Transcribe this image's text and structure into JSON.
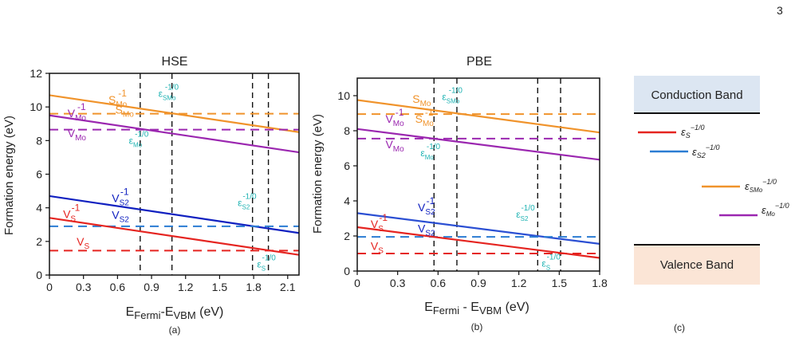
{
  "page_number": "3",
  "chart_data": [
    {
      "type": "line",
      "panel": "(a)",
      "title": "HSE",
      "xlabel": {
        "main": "E",
        "sub1": "Fermi",
        "mid": "-E",
        "sub2": "VBM",
        "unit": " (eV)"
      },
      "ylabel": "Formation energy (eV)",
      "xlim": [
        0,
        2.2
      ],
      "ylim": [
        0,
        12
      ],
      "xticks": [
        0,
        0.3,
        0.6,
        0.9,
        1.2,
        1.5,
        1.8,
        2.1
      ],
      "xtick_labels": [
        "0",
        "0.3",
        "0.6",
        "0.9",
        "1.2",
        "1.5",
        "1.8",
        "2.1"
      ],
      "yticks": [
        0,
        2,
        4,
        6,
        8,
        10,
        12
      ],
      "ytick_labels": [
        "0",
        "2",
        "4",
        "6",
        "8",
        "10",
        "12"
      ],
      "series": [
        {
          "role": "S_Mo charged",
          "color": "#f0932b",
          "dash": false,
          "x": [
            0,
            2.2
          ],
          "y": [
            10.7,
            8.5
          ]
        },
        {
          "role": "S_Mo neutral",
          "color": "#f0932b",
          "dash": true,
          "x": [
            0,
            2.2
          ],
          "y": [
            9.6,
            9.6
          ]
        },
        {
          "role": "V_Mo charged",
          "color": "#9b27b0",
          "dash": false,
          "x": [
            0,
            2.2
          ],
          "y": [
            9.5,
            7.3
          ]
        },
        {
          "role": "V_Mo neutral",
          "color": "#9b27b0",
          "dash": true,
          "x": [
            0,
            2.2
          ],
          "y": [
            8.65,
            8.65
          ]
        },
        {
          "role": "V_S2 charged",
          "color": "#1020c0",
          "dash": false,
          "x": [
            0,
            2.2
          ],
          "y": [
            4.7,
            2.5
          ]
        },
        {
          "role": "V_S2 neutral",
          "color": "#2b7cd3",
          "dash": true,
          "x": [
            0,
            2.2
          ],
          "y": [
            2.9,
            2.9
          ]
        },
        {
          "role": "V_S charged",
          "color": "#e52420",
          "dash": false,
          "x": [
            0,
            2.2
          ],
          "y": [
            3.4,
            1.2
          ]
        },
        {
          "role": "V_S neutral",
          "color": "#e52420",
          "dash": true,
          "x": [
            0,
            2.2
          ],
          "y": [
            1.45,
            1.45
          ]
        }
      ],
      "vlines": [
        0.8,
        1.08,
        1.79,
        1.93
      ],
      "annotations": [
        {
          "text": "S",
          "sub": "Mo",
          "sup": "-1",
          "x": 0.52,
          "y": 10.2,
          "color": "#f0932b"
        },
        {
          "text": "S",
          "sub": "Mo",
          "sup": "",
          "x": 0.58,
          "y": 9.6,
          "color": "#f0932b"
        },
        {
          "text": "V",
          "sub": "Mo",
          "sup": "-1",
          "x": 0.16,
          "y": 9.4,
          "color": "#9b27b0"
        },
        {
          "text": "V",
          "sub": "Mo",
          "sup": "",
          "x": 0.16,
          "y": 8.2,
          "color": "#9b27b0"
        },
        {
          "text": "V",
          "sub": "S2",
          "sup": "-1",
          "x": 0.55,
          "y": 4.35,
          "color": "#1020c0"
        },
        {
          "text": "V",
          "sub": "S2",
          "sup": "",
          "x": 0.55,
          "y": 3.35,
          "color": "#1020c0"
        },
        {
          "text": "V",
          "sub": "S",
          "sup": "-1",
          "x": 0.12,
          "y": 3.4,
          "color": "#e52420"
        },
        {
          "text": "V",
          "sub": "S",
          "sup": "",
          "x": 0.24,
          "y": 1.75,
          "color": "#e52420"
        },
        {
          "text": "ε",
          "sub": "SMo",
          "sup": "-1/0",
          "x": 0.96,
          "y": 10.6,
          "color": "#1fb3b3"
        },
        {
          "text": "ε",
          "sub": "Mo",
          "sup": "-1/0",
          "x": 0.7,
          "y": 7.8,
          "color": "#1fb3b3"
        },
        {
          "text": "ε",
          "sub": "S2",
          "sup": "-1/0",
          "x": 1.66,
          "y": 4.1,
          "color": "#1fb3b3"
        },
        {
          "text": "ε",
          "sub": "S",
          "sup": "-1/0",
          "x": 1.83,
          "y": 0.45,
          "color": "#1fb3b3"
        }
      ]
    },
    {
      "type": "line",
      "panel": "(b)",
      "title": "PBE",
      "xlabel": {
        "main": "E",
        "sub1": "Fermi",
        "mid": " - E",
        "sub2": "VBM",
        "unit": " (eV)"
      },
      "ylabel": "Formation energy (eV)",
      "xlim": [
        0,
        1.8
      ],
      "ylim": [
        0,
        11
      ],
      "xticks": [
        0,
        0.3,
        0.6,
        0.9,
        1.2,
        1.5,
        1.8
      ],
      "xtick_labels": [
        "0",
        "0.3",
        "0.6",
        "0.9",
        "1.2",
        "1.5",
        "1.8"
      ],
      "yticks": [
        0,
        2,
        4,
        6,
        8,
        10
      ],
      "ytick_labels": [
        "0",
        "2",
        "4",
        "6",
        "8",
        "10"
      ],
      "series": [
        {
          "role": "S_Mo charged",
          "color": "#f0932b",
          "dash": false,
          "x": [
            0,
            1.8
          ],
          "y": [
            9.75,
            7.9
          ]
        },
        {
          "role": "S_Mo neutral",
          "color": "#f0932b",
          "dash": true,
          "x": [
            0,
            1.8
          ],
          "y": [
            8.95,
            8.95
          ]
        },
        {
          "role": "V_Mo charged",
          "color": "#9b27b0",
          "dash": false,
          "x": [
            0,
            1.8
          ],
          "y": [
            8.1,
            6.35
          ]
        },
        {
          "role": "V_Mo neutral",
          "color": "#9b27b0",
          "dash": true,
          "x": [
            0,
            1.8
          ],
          "y": [
            7.55,
            7.55
          ]
        },
        {
          "role": "V_S2 charged",
          "color": "#2b4fd3",
          "dash": false,
          "x": [
            0,
            1.8
          ],
          "y": [
            3.3,
            1.55
          ]
        },
        {
          "role": "V_S2 neutral",
          "color": "#2b7cd3",
          "dash": true,
          "x": [
            0,
            1.8
          ],
          "y": [
            1.95,
            1.95
          ]
        },
        {
          "role": "V_S charged",
          "color": "#e52420",
          "dash": false,
          "x": [
            0,
            1.8
          ],
          "y": [
            2.5,
            0.75
          ]
        },
        {
          "role": "V_S neutral",
          "color": "#e52420",
          "dash": true,
          "x": [
            0,
            1.8
          ],
          "y": [
            1.0,
            1.0
          ]
        }
      ],
      "vlines": [
        0.57,
        0.74,
        1.34,
        1.51
      ],
      "annotations": [
        {
          "text": "S",
          "sub": "Mo",
          "sup": "",
          "x": 0.41,
          "y": 9.6,
          "color": "#f0932b"
        },
        {
          "text": "S",
          "sub": "Mo",
          "sup": "-1",
          "x": 0.43,
          "y": 8.45,
          "color": "#f0932b"
        },
        {
          "text": "V",
          "sub": "Mo",
          "sup": "-1",
          "x": 0.21,
          "y": 8.45,
          "color": "#9b27b0"
        },
        {
          "text": "V",
          "sub": "Mo",
          "sup": "",
          "x": 0.21,
          "y": 7.0,
          "color": "#9b27b0"
        },
        {
          "text": "V",
          "sub": "S2",
          "sup": "-1",
          "x": 0.45,
          "y": 3.4,
          "color": "#1020c0"
        },
        {
          "text": "V",
          "sub": "S2",
          "sup": "",
          "x": 0.45,
          "y": 2.2,
          "color": "#1020c0"
        },
        {
          "text": "V",
          "sub": "S",
          "sup": "-1",
          "x": 0.1,
          "y": 2.45,
          "color": "#e52420"
        },
        {
          "text": "V",
          "sub": "S",
          "sup": "",
          "x": 0.1,
          "y": 1.2,
          "color": "#e52420"
        },
        {
          "text": "ε",
          "sub": "SMo",
          "sup": "-1/0",
          "x": 0.63,
          "y": 9.75,
          "color": "#1fb3b3"
        },
        {
          "text": "ε",
          "sub": "Mo",
          "sup": "-1/0",
          "x": 0.47,
          "y": 6.55,
          "color": "#1fb3b3"
        },
        {
          "text": "ε",
          "sub": "S2",
          "sup": "-1/0",
          "x": 1.18,
          "y": 3.05,
          "color": "#1fb3b3"
        },
        {
          "text": "ε",
          "sub": "S",
          "sup": "-1/0",
          "x": 1.37,
          "y": 0.25,
          "color": "#1fb3b3"
        }
      ]
    },
    {
      "type": "diagram",
      "panel": "(c)",
      "conduction_band": {
        "label": "Conduction Band",
        "fill": "#dce6f2"
      },
      "valence_band": {
        "label": "Valence Band",
        "fill": "#fbe5d6"
      },
      "levels": [
        {
          "symbol": "ε",
          "sub": "S",
          "sup": "−1/0",
          "color": "#e52420"
        },
        {
          "symbol": "ε",
          "sub": "S2",
          "sup": "−1/0",
          "color": "#2b7cd3"
        },
        {
          "symbol": "ε",
          "sub": "SMo",
          "sup": "−1/0",
          "color": "#f0932b"
        },
        {
          "symbol": "ε",
          "sub": "Mo",
          "sup": "−1/0",
          "color": "#9b27b0"
        }
      ]
    }
  ]
}
